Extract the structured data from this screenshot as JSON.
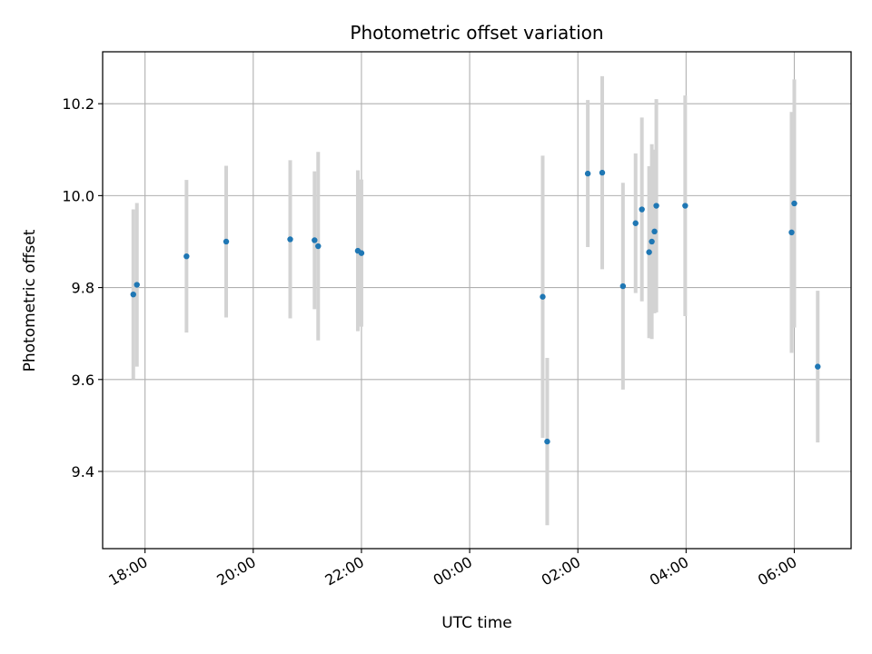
{
  "chart_data": {
    "type": "scatter",
    "title": "Photometric offset variation",
    "xlabel": "UTC time",
    "ylabel": "Photometric offset",
    "x_axis_type": "time",
    "x_range": [
      "17:13",
      "07:03"
    ],
    "ylim": [
      9.232,
      10.313
    ],
    "grid": true,
    "x_ticks": [
      {
        "time": "18:00",
        "label": "18:00"
      },
      {
        "time": "20:00",
        "label": "20:00"
      },
      {
        "time": "22:00",
        "label": "22:00"
      },
      {
        "time": "00:00",
        "label": "00:00"
      },
      {
        "time": "02:00",
        "label": "02:00"
      },
      {
        "time": "04:00",
        "label": "04:00"
      },
      {
        "time": "06:00",
        "label": "06:00"
      }
    ],
    "y_ticks": [
      9.4,
      9.6,
      9.8,
      10.0,
      10.2
    ],
    "y_tick_labels": [
      "9.4",
      "9.6",
      "9.8",
      "10.0",
      "10.2"
    ],
    "marker_color": "#1f77b4",
    "errorbar_color": "#d3d3d3",
    "points": [
      {
        "time": "17:47",
        "y": 9.785,
        "yerr": 0.185
      },
      {
        "time": "17:51",
        "y": 9.806,
        "yerr": 0.178
      },
      {
        "time": "18:46",
        "y": 9.868,
        "yerr": 0.166
      },
      {
        "time": "19:30",
        "y": 9.9,
        "yerr": 0.165
      },
      {
        "time": "20:41",
        "y": 9.905,
        "yerr": 0.172
      },
      {
        "time": "21:08",
        "y": 9.903,
        "yerr": 0.15
      },
      {
        "time": "21:12",
        "y": 9.89,
        "yerr": 0.205
      },
      {
        "time": "21:56",
        "y": 9.88,
        "yerr": 0.175
      },
      {
        "time": "22:00",
        "y": 9.875,
        "yerr": 0.16
      },
      {
        "time": "01:21",
        "y": 9.78,
        "yerr": 0.307
      },
      {
        "time": "01:26",
        "y": 9.465,
        "yerr": 0.182
      },
      {
        "time": "02:11",
        "y": 10.048,
        "yerr": 0.16
      },
      {
        "time": "02:27",
        "y": 10.05,
        "yerr": 0.21
      },
      {
        "time": "02:50",
        "y": 9.803,
        "yerr": 0.225
      },
      {
        "time": "03:04",
        "y": 9.94,
        "yerr": 0.152
      },
      {
        "time": "03:11",
        "y": 9.97,
        "yerr": 0.2
      },
      {
        "time": "03:19",
        "y": 9.877,
        "yerr": 0.187
      },
      {
        "time": "03:22",
        "y": 9.9,
        "yerr": 0.212
      },
      {
        "time": "03:25",
        "y": 9.922,
        "yerr": 0.178
      },
      {
        "time": "03:27",
        "y": 9.978,
        "yerr": 0.232
      },
      {
        "time": "03:59",
        "y": 9.978,
        "yerr": 0.24
      },
      {
        "time": "05:57",
        "y": 9.92,
        "yerr": 0.262
      },
      {
        "time": "06:00",
        "y": 9.983,
        "yerr": 0.27
      },
      {
        "time": "06:26",
        "y": 9.628,
        "yerr": 0.165
      }
    ]
  }
}
